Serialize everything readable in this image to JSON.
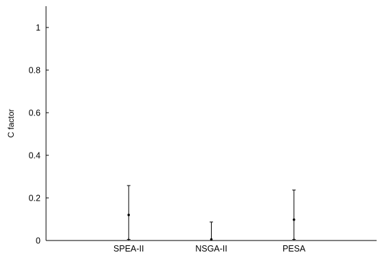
{
  "chart_data": {
    "type": "scatter",
    "title": "",
    "xlabel": "",
    "ylabel": "C factor",
    "ylim": [
      0,
      1.1
    ],
    "yticks": [
      0,
      0.2,
      0.4,
      0.6,
      0.8,
      1
    ],
    "yticklabels": [
      "0",
      "0.2",
      "0.4",
      "0.6",
      "0.8",
      "1"
    ],
    "xlim": [
      0,
      4
    ],
    "categories": [
      "SPEA-II",
      "NSGA-II",
      "PESA"
    ],
    "grid": false,
    "legend": "none",
    "points": [
      {
        "category": "SPEA-II",
        "x": 1,
        "mean": 0.12,
        "low": 0.005,
        "high": 0.258
      },
      {
        "category": "NSGA-II",
        "x": 2,
        "mean": 0.005,
        "low": 0.0,
        "high": 0.087
      },
      {
        "category": "PESA",
        "x": 3,
        "mean": 0.098,
        "low": 0.005,
        "high": 0.237
      }
    ],
    "colors": {
      "axis": "#000000",
      "marker": "#000000"
    }
  }
}
